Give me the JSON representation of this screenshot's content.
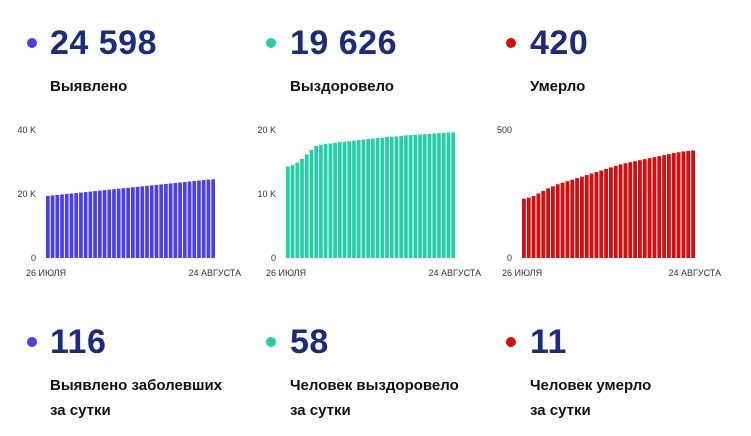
{
  "panels": [
    {
      "color": "#4a3ef0",
      "total": "24 598",
      "total_label": "Выявлено",
      "daily": "116",
      "daily_label_1": "Выявлено заболевших",
      "daily_label_2": "за сутки"
    },
    {
      "color": "#1fd1a5",
      "total": "19 626",
      "total_label": "Выздоровело",
      "daily": "58",
      "daily_label_1": "Человек выздоровело",
      "daily_label_2": "за сутки"
    },
    {
      "color": "#d90d0d",
      "total": "420",
      "total_label": "Умерло",
      "daily": "11",
      "daily_label_1": "Человек умерло",
      "daily_label_2": "за сутки"
    }
  ],
  "chart_data": [
    {
      "type": "bar",
      "color": "#4a3ef0",
      "x_start_label": "26 ИЮЛЯ",
      "x_end_label": "24 АВГУСТА",
      "yticks": [
        {
          "value": 0,
          "label": "0"
        },
        {
          "value": 20000,
          "label": "20 K"
        },
        {
          "value": 40000,
          "label": "40 K"
        }
      ],
      "ylim": [
        0,
        40000
      ],
      "values": [
        19400,
        19550,
        19700,
        19850,
        20000,
        20150,
        20300,
        20450,
        20600,
        20750,
        20900,
        21050,
        21200,
        21350,
        21500,
        21650,
        21800,
        21950,
        22100,
        22250,
        22400,
        22550,
        22700,
        22850,
        23000,
        23150,
        23300,
        23450,
        23600,
        23750,
        23900,
        24050,
        24200,
        24350,
        24500,
        24598
      ]
    },
    {
      "type": "bar",
      "color": "#1fd1a5",
      "x_start_label": "26 ИЮЛЯ",
      "x_end_label": "24 АВГУСТА",
      "yticks": [
        {
          "value": 0,
          "label": "0"
        },
        {
          "value": 10000,
          "label": "10 K"
        },
        {
          "value": 20000,
          "label": "20 K"
        }
      ],
      "ylim": [
        0,
        20000
      ],
      "values": [
        14300,
        14500,
        14900,
        15500,
        16200,
        16900,
        17500,
        17700,
        17800,
        17900,
        18000,
        18100,
        18150,
        18250,
        18350,
        18450,
        18500,
        18600,
        18650,
        18750,
        18800,
        18900,
        18950,
        19000,
        19050,
        19150,
        19200,
        19250,
        19300,
        19350,
        19400,
        19450,
        19500,
        19550,
        19600,
        19626
      ]
    },
    {
      "type": "bar",
      "color": "#d90d0d",
      "x_start_label": "26 ИЮЛЯ",
      "x_end_label": "24 АВГУСТА",
      "yticks": [
        {
          "value": 0,
          "label": "0"
        },
        {
          "value": 500,
          "label": "500"
        }
      ],
      "ylim": [
        0,
        500
      ],
      "values": [
        232,
        236,
        242,
        252,
        262,
        272,
        280,
        288,
        294,
        300,
        306,
        312,
        318,
        324,
        330,
        336,
        342,
        348,
        354,
        360,
        366,
        370,
        374,
        378,
        382,
        386,
        390,
        394,
        398,
        402,
        406,
        410,
        413,
        416,
        418,
        420
      ]
    }
  ]
}
